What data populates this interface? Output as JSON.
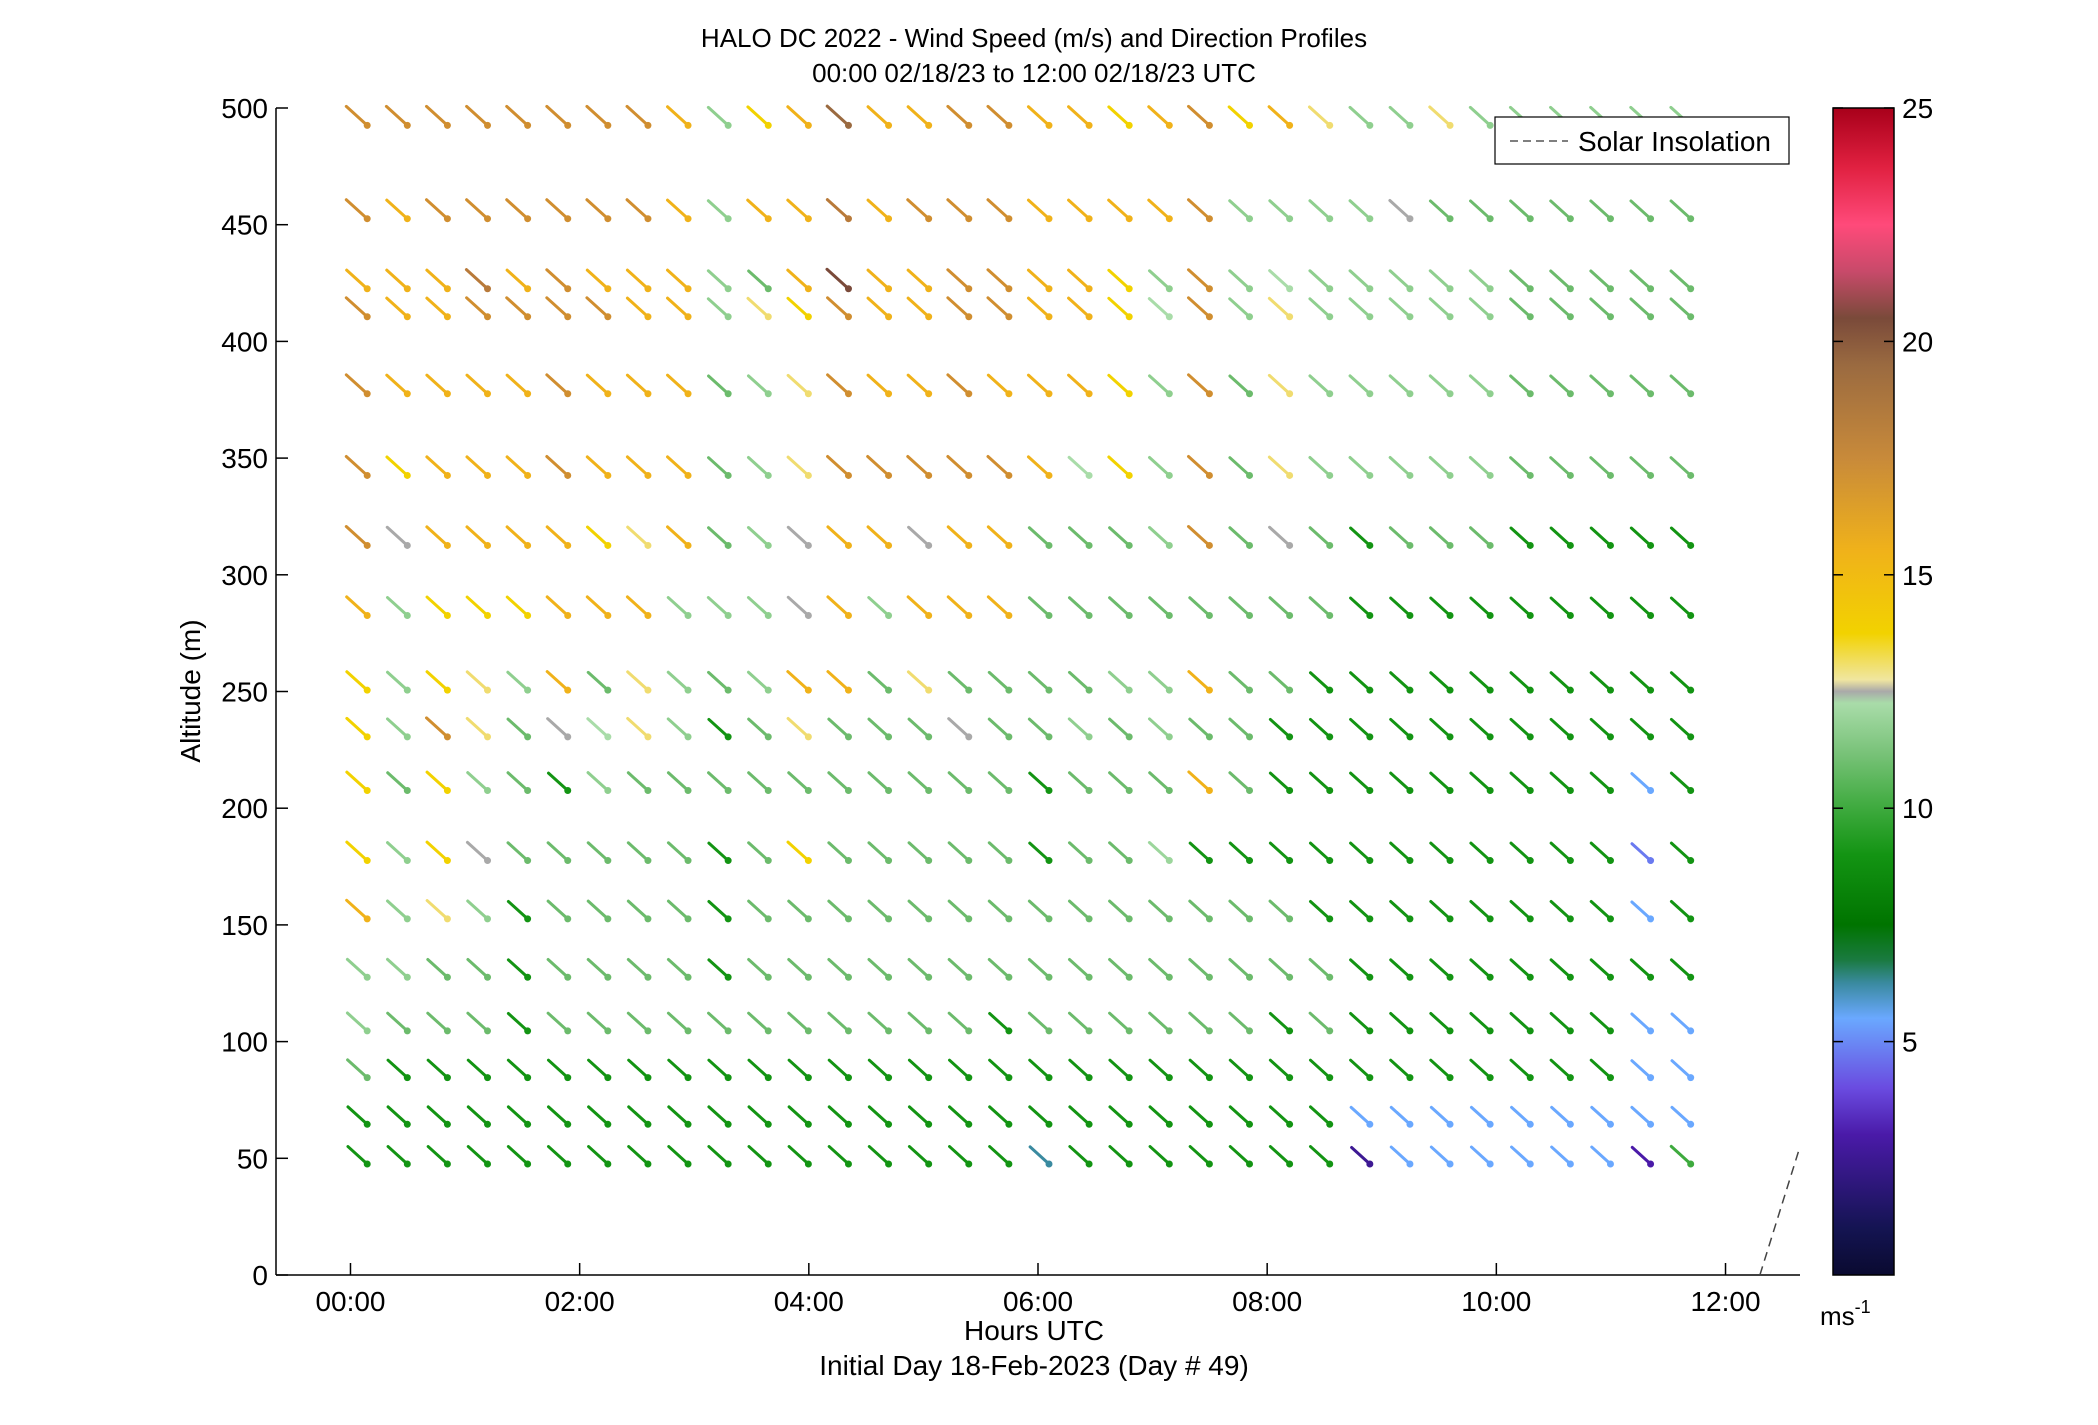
{
  "chart_data": {
    "type": "scatter",
    "subtype": "wind-barb-profile",
    "title": "HALO DC 2022 - Wind Speed (m/s) and Direction Profiles",
    "subtitle": "00:00 02/18/23 to 12:00 02/18/23  UTC",
    "xlabel": "Hours UTC",
    "xlabel2": "Initial Day 18-Feb-2023 (Day # 49)",
    "ylabel": "Altitude (m)",
    "xlim": [
      -0.65,
      12.65
    ],
    "ylim": [
      0,
      500
    ],
    "x_ticks": [
      0,
      2,
      4,
      6,
      8,
      10,
      12
    ],
    "x_tick_labels": [
      "00:00",
      "02:00",
      "04:00",
      "06:00",
      "08:00",
      "10:00",
      "12:00"
    ],
    "y_ticks": [
      0,
      50,
      100,
      150,
      200,
      250,
      300,
      350,
      400,
      450,
      500
    ],
    "y_tick_labels": [
      "0",
      "50",
      "100",
      "150",
      "200",
      "250",
      "300",
      "350",
      "400",
      "450",
      "500"
    ],
    "grid": false,
    "legend": {
      "position": "top-right",
      "entries": [
        "Solar Insolation"
      ]
    },
    "colorbar": {
      "label": "ms",
      "label_exponent": "-1",
      "range": [
        0,
        25
      ],
      "ticks": [
        5,
        10,
        15,
        20,
        25
      ],
      "tick_labels": [
        "5",
        "10",
        "15",
        "20",
        "25"
      ]
    },
    "insolation_line": {
      "x": [
        12.3,
        12.65
      ],
      "y": [
        0,
        55
      ]
    },
    "times_hours": [
      0.05,
      0.4,
      0.75,
      1.1,
      1.45,
      1.8,
      2.15,
      2.5,
      2.85,
      3.2,
      3.55,
      3.9,
      4.25,
      4.6,
      4.95,
      5.3,
      5.65,
      6.0,
      6.35,
      6.7,
      7.05,
      7.4,
      7.75,
      8.1,
      8.45,
      8.8,
      9.15,
      9.5,
      9.85,
      10.2,
      10.55,
      10.9,
      11.25,
      11.6
    ],
    "altitudes_m": [
      45,
      62,
      82,
      102,
      125,
      150,
      175,
      205,
      228,
      248,
      280,
      310,
      340,
      375,
      408,
      420,
      450,
      490
    ],
    "speed_ms": [
      [
        8,
        8,
        8,
        8,
        8,
        8,
        8,
        8,
        8,
        8,
        8,
        8,
        8,
        8,
        8,
        8,
        8,
        6,
        8,
        8,
        8,
        8,
        8,
        8,
        8,
        2.5,
        5,
        5,
        5,
        5,
        5,
        5,
        3,
        9
      ],
      [
        8,
        8,
        8,
        8,
        8,
        8,
        8,
        8,
        8,
        8,
        8,
        8,
        8,
        8,
        8,
        8,
        8,
        8,
        8,
        8,
        8,
        8,
        8,
        8,
        8,
        5,
        5,
        5,
        5,
        5,
        5,
        5,
        5,
        5
      ],
      [
        10,
        8,
        8,
        8,
        8,
        8,
        8,
        8,
        8,
        8,
        8,
        8,
        8,
        8,
        8,
        8,
        8,
        8,
        8,
        8,
        8,
        8,
        8,
        8,
        8,
        8,
        8,
        8,
        8,
        8,
        8,
        8,
        5,
        5
      ],
      [
        11,
        10,
        10,
        10,
        8,
        10,
        10,
        10,
        10,
        10,
        10,
        10,
        10,
        10,
        10,
        10,
        8,
        10,
        10,
        10,
        10,
        10,
        10,
        8,
        10,
        8,
        8,
        8,
        8,
        8,
        8,
        8,
        5,
        5
      ],
      [
        11,
        11,
        10,
        10,
        8,
        10,
        10,
        10,
        10,
        8,
        10,
        10,
        10,
        10,
        10,
        10,
        10,
        10,
        10,
        10,
        10,
        10,
        10,
        10,
        10,
        8,
        8,
        8,
        8,
        8,
        8,
        8,
        8,
        8
      ],
      [
        15,
        11,
        13.5,
        11,
        8,
        10,
        10,
        10,
        10,
        8,
        10,
        10,
        10,
        10,
        10,
        10,
        10,
        10,
        10,
        10,
        10,
        10,
        10,
        10,
        8,
        8,
        8,
        8,
        8,
        8,
        8,
        8,
        5,
        8
      ],
      [
        14,
        11,
        14,
        12.5,
        10,
        10,
        10,
        10,
        10,
        8,
        10,
        14,
        10,
        10,
        10,
        10,
        10,
        8,
        10,
        10,
        11.5,
        8,
        8,
        8,
        8,
        8,
        8,
        8,
        8,
        8,
        8,
        8,
        4.5,
        8
      ],
      [
        14,
        10,
        14,
        11,
        10,
        8,
        11,
        10,
        10,
        10,
        10,
        10,
        10,
        10,
        10,
        10,
        10,
        8,
        10,
        10,
        10,
        15,
        10,
        8,
        8,
        8,
        8,
        8,
        8,
        8,
        8,
        8,
        5,
        8
      ],
      [
        14,
        11,
        17,
        13.5,
        10,
        12.5,
        12,
        13.5,
        11,
        8,
        10,
        13.5,
        10,
        10,
        10,
        12.5,
        10,
        10,
        11,
        10,
        11,
        10,
        10,
        8,
        8,
        8,
        8,
        8,
        8,
        8,
        8,
        8,
        8,
        8
      ],
      [
        14,
        11,
        14,
        13.5,
        11,
        15,
        10,
        13.5,
        11,
        10,
        11,
        15,
        15,
        10,
        13.5,
        10,
        10,
        10,
        10,
        11,
        11,
        15,
        10,
        10,
        8,
        8,
        8,
        8,
        8,
        8,
        8,
        8,
        8,
        8
      ],
      [
        15,
        11,
        14,
        14,
        14,
        15,
        15,
        15,
        11,
        11,
        11,
        12.5,
        15,
        11,
        15,
        15,
        15,
        10,
        10,
        10,
        10,
        10,
        10,
        10,
        10,
        8,
        8,
        8,
        8,
        8,
        8,
        8,
        8,
        8
      ],
      [
        17,
        12.5,
        15,
        15,
        15,
        15,
        14,
        13.5,
        15,
        10,
        11,
        12.5,
        15,
        15,
        12.5,
        15,
        15,
        10,
        10,
        10,
        11,
        17,
        10,
        12.5,
        10,
        8,
        10,
        10,
        10,
        8,
        8,
        8,
        8,
        8
      ],
      [
        17,
        14,
        15,
        15,
        15,
        17,
        15,
        15,
        15,
        10,
        11,
        13.5,
        17,
        17,
        17,
        17,
        17,
        15,
        12,
        14,
        11,
        17,
        10,
        13.5,
        11,
        11,
        11,
        11,
        11,
        10,
        10,
        10,
        10,
        10
      ],
      [
        17,
        15,
        15,
        15,
        15,
        17,
        15,
        15,
        15,
        10,
        11,
        13.5,
        17,
        15,
        15,
        17,
        15,
        15,
        15,
        14,
        11,
        17,
        10,
        13.5,
        11,
        11,
        11,
        11,
        11,
        10,
        10,
        10,
        10,
        10
      ],
      [
        17,
        15,
        15,
        17,
        17,
        17,
        17,
        15,
        15,
        11,
        13.5,
        14,
        17,
        15,
        15,
        17,
        17,
        15,
        15,
        14,
        12,
        17,
        11,
        13.5,
        11,
        11,
        11,
        11,
        11,
        10,
        10,
        10,
        10,
        10
      ],
      [
        15,
        15,
        15,
        18,
        15,
        17,
        15,
        15,
        15,
        11,
        10,
        15,
        20,
        15,
        15,
        17,
        17,
        15,
        15,
        14,
        11,
        17,
        11,
        12,
        11,
        11,
        11,
        11,
        11,
        10,
        10,
        10,
        10,
        10
      ],
      [
        17,
        15,
        17,
        17,
        17,
        17,
        17,
        17,
        15,
        11,
        15,
        15,
        18,
        15,
        17,
        17,
        17,
        15,
        15,
        15,
        15,
        17,
        11,
        11,
        11,
        11,
        12.5,
        10,
        10,
        10,
        10,
        10,
        10,
        10
      ],
      [
        17,
        17,
        17,
        17,
        17,
        17,
        17,
        17,
        15,
        11,
        14,
        15,
        19,
        15,
        15,
        17,
        17,
        15,
        15,
        14,
        15,
        17,
        14,
        15,
        13.5,
        11,
        11,
        13.5,
        11,
        11,
        11,
        11,
        11,
        11
      ]
    ],
    "direction_note": "all barbs point from the northwest (about 305-320 degrees)"
  },
  "legend_line_label": "Solar Insolation"
}
